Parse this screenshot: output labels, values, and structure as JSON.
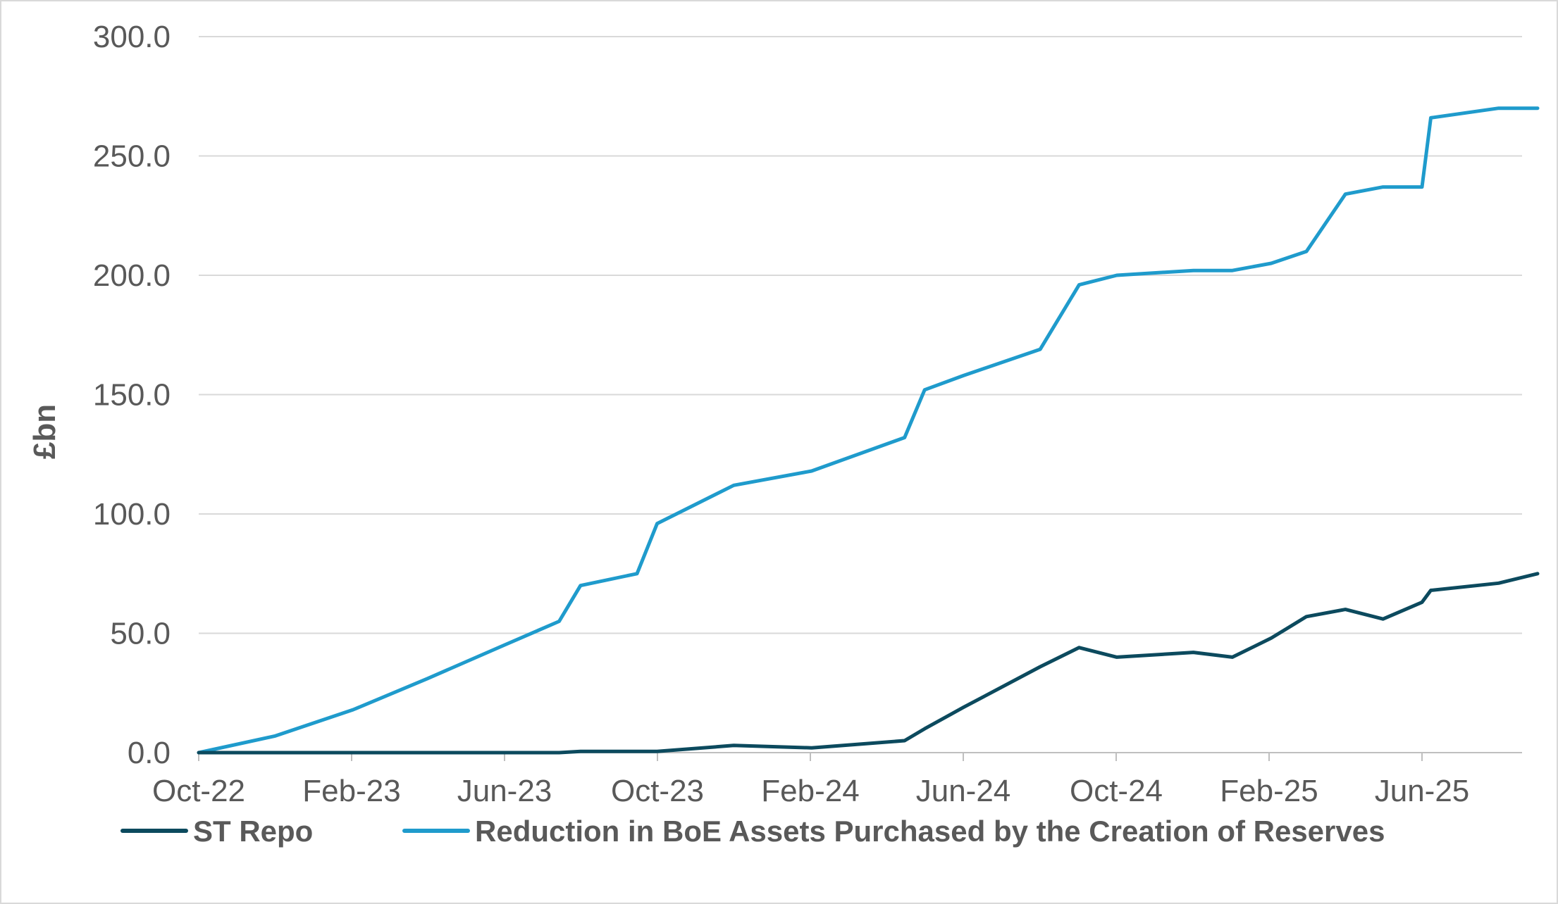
{
  "chart_data": {
    "type": "line",
    "title": "",
    "xlabel": "",
    "ylabel": "£bn",
    "ylim": [
      0,
      300
    ],
    "yticks": [
      "0.0",
      "50.0",
      "100.0",
      "150.0",
      "200.0",
      "250.0",
      "300.0"
    ],
    "xticks": [
      "Oct-22",
      "Feb-23",
      "Jun-23",
      "Oct-23",
      "Feb-24",
      "Jun-24",
      "Oct-24",
      "Feb-25",
      "Jun-25"
    ],
    "grid": "horizontal",
    "legend_position": "bottom",
    "x": [
      "2022-10-01",
      "2022-12-01",
      "2023-02-01",
      "2023-04-01",
      "2023-06-01",
      "2023-07-15",
      "2023-08-01",
      "2023-09-15",
      "2023-10-01",
      "2023-12-01",
      "2024-02-01",
      "2024-04-15",
      "2024-05-01",
      "2024-06-01",
      "2024-08-01",
      "2024-09-01",
      "2024-10-01",
      "2024-12-01",
      "2025-01-01",
      "2025-02-01",
      "2025-03-01",
      "2025-04-01",
      "2025-05-01",
      "2025-06-01",
      "2025-06-08",
      "2025-08-01",
      "2025-09-01"
    ],
    "series": [
      {
        "name": "ST Repo",
        "color": "#0c4a5e",
        "values": [
          0,
          0,
          0,
          0,
          0,
          0,
          0.5,
          0.5,
          0.5,
          3,
          2,
          5,
          10,
          19,
          36,
          44,
          40,
          42,
          40,
          48,
          57,
          60,
          56,
          63,
          68,
          71,
          75
        ]
      },
      {
        "name": "Reduction in BoE Assets Purchased by the Creation of Reserves",
        "color": "#1f9bcc",
        "values": [
          0,
          7,
          18,
          31,
          45,
          55,
          70,
          75,
          96,
          112,
          118,
          132,
          152,
          158,
          169,
          196,
          200,
          202,
          202,
          205,
          210,
          234,
          237,
          237,
          266,
          270,
          270
        ]
      }
    ]
  }
}
